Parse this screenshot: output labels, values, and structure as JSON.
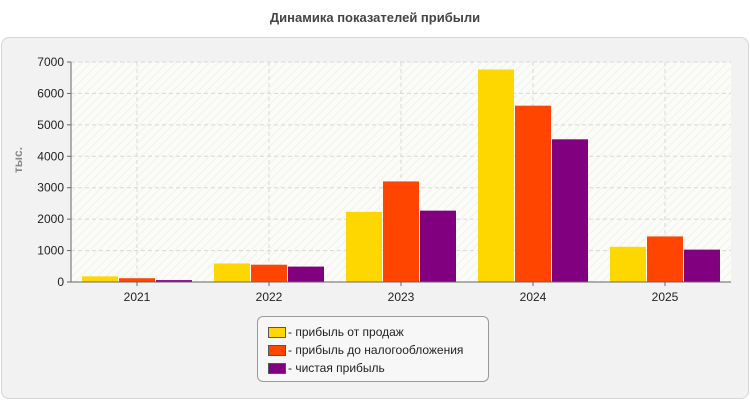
{
  "title": "Динамика показателей прибыли",
  "chart_data": {
    "type": "bar",
    "title": "Динамика показателей прибыли",
    "xlabel": "",
    "ylabel": "тыс.",
    "categories": [
      "2021",
      "2022",
      "2023",
      "2024",
      "2025"
    ],
    "ylim": [
      0,
      7000
    ],
    "yticks": [
      "0",
      "1000",
      "2000",
      "3000",
      "4000",
      "5000",
      "6000",
      "7000"
    ],
    "grid": true,
    "legend_position": "bottom",
    "series": [
      {
        "name": "прибыль от продаж",
        "color": "#ffd700",
        "values": [
          180,
          590,
          2230,
          6760,
          1120
        ]
      },
      {
        "name": "прибыль до налогообложения",
        "color": "#ff4500",
        "values": [
          120,
          550,
          3200,
          5610,
          1450
        ]
      },
      {
        "name": "чистая прибыль",
        "color": "#800080",
        "values": [
          60,
          490,
          2270,
          4540,
          1030
        ]
      }
    ]
  },
  "legend": {
    "items": [
      {
        "label": "- прибыль от продаж",
        "color": "#ffd700"
      },
      {
        "label": "- прибыль до налогообложения",
        "color": "#ff4500"
      },
      {
        "label": "- чистая прибыль",
        "color": "#800080"
      }
    ]
  }
}
